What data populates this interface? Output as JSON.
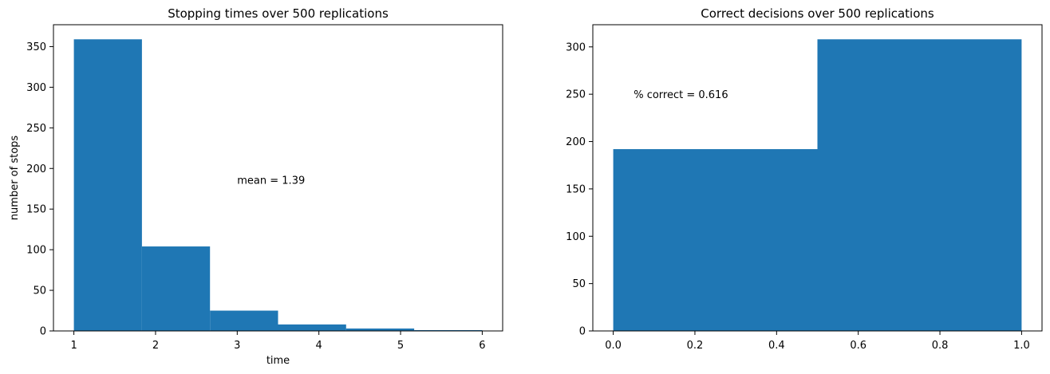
{
  "chart_data": [
    {
      "type": "histogram",
      "title": "Stopping times over 500 replications",
      "x_label": "time",
      "y_label": "number of stops",
      "bins": [
        1,
        1.8333,
        2.6667,
        3.5,
        4.3333,
        5.1667,
        6
      ],
      "values": [
        359,
        104,
        25,
        8,
        3,
        1
      ],
      "color": "#1f77b4",
      "xlim": [
        0.75,
        6.25
      ],
      "xticks": [
        1,
        2,
        3,
        4,
        5,
        6
      ],
      "ylim": [
        0,
        376.95
      ],
      "yticks": [
        0,
        50,
        100,
        150,
        200,
        250,
        300,
        350
      ],
      "annotation": "mean = 1.39"
    },
    {
      "type": "histogram",
      "title": "Correct decisions over 500 replications",
      "bins": [
        0,
        0.5,
        1
      ],
      "values": [
        192,
        308
      ],
      "color": "#1f77b4",
      "xlim": [
        -0.05,
        1.05
      ],
      "xticks": [
        {
          "value": 0,
          "label": "0.0"
        },
        {
          "value": 0.2,
          "label": "0.2"
        },
        {
          "value": 0.4,
          "label": "0.4"
        },
        {
          "value": 0.6,
          "label": "0.6"
        },
        {
          "value": 0.8,
          "label": "0.8"
        },
        {
          "value": 1,
          "label": "1.0"
        }
      ],
      "ylim": [
        0,
        323.4
      ],
      "yticks": [
        0,
        50,
        100,
        150,
        200,
        250,
        300
      ],
      "annotation": "% correct = 0.616"
    }
  ]
}
